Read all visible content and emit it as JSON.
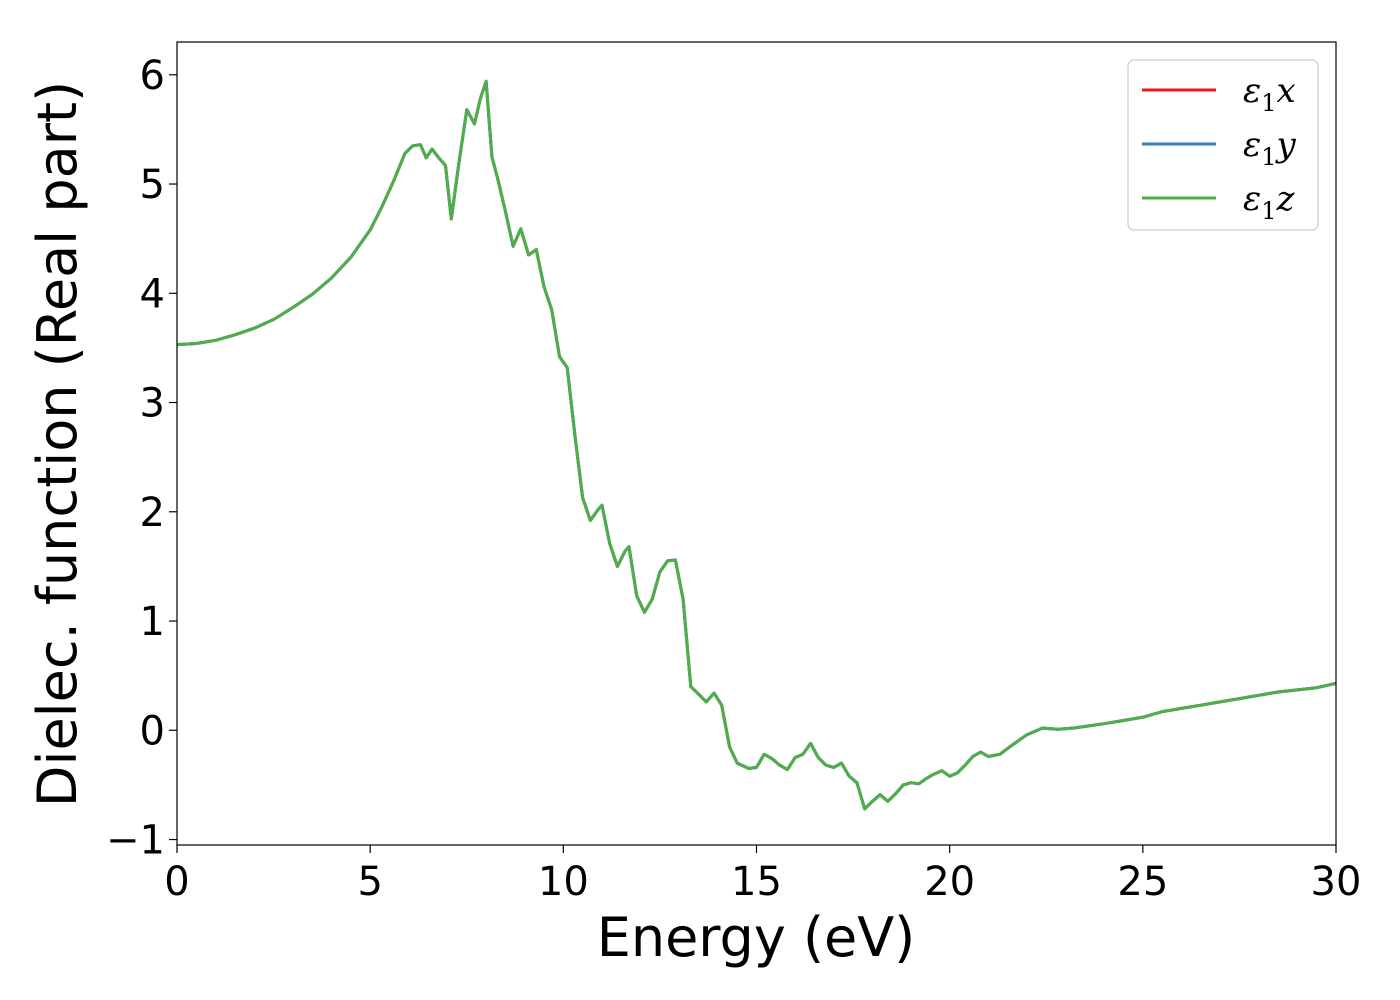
{
  "chart_data": {
    "type": "line",
    "title": "",
    "xlabel": "Energy (eV)",
    "ylabel": "Dielec. function (Real part)",
    "xlim": [
      0,
      30
    ],
    "ylim": [
      -1.05,
      6.3
    ],
    "xticks": [
      0,
      5,
      10,
      15,
      20,
      25,
      30
    ],
    "yticks": [
      -1,
      0,
      1,
      2,
      3,
      4,
      5,
      6
    ],
    "xtick_labels": [
      "0",
      "5",
      "10",
      "15",
      "20",
      "25",
      "30"
    ],
    "ytick_labels": [
      "−1",
      "0",
      "1",
      "2",
      "3",
      "4",
      "5",
      "6"
    ],
    "grid": false,
    "legend_position": "top-right",
    "x": [
      0,
      0.5,
      1,
      1.5,
      2,
      2.5,
      3,
      3.5,
      4,
      4.5,
      5,
      5.3,
      5.6,
      5.9,
      6.1,
      6.3,
      6.45,
      6.6,
      6.8,
      6.95,
      7.1,
      7.3,
      7.5,
      7.7,
      7.85,
      8.0,
      8.15,
      8.3,
      8.5,
      8.7,
      8.9,
      9.1,
      9.3,
      9.5,
      9.7,
      9.9,
      10.1,
      10.3,
      10.5,
      10.7,
      10.9,
      11.0,
      11.2,
      11.4,
      11.6,
      11.7,
      11.9,
      12.1,
      12.3,
      12.5,
      12.7,
      12.9,
      13.1,
      13.3,
      13.5,
      13.7,
      13.9,
      14.1,
      14.3,
      14.5,
      14.8,
      15.0,
      15.2,
      15.4,
      15.6,
      15.8,
      16.0,
      16.2,
      16.4,
      16.6,
      16.8,
      17.0,
      17.2,
      17.4,
      17.6,
      17.8,
      18.0,
      18.2,
      18.4,
      18.6,
      18.8,
      19.0,
      19.2,
      19.4,
      19.6,
      19.8,
      20.0,
      20.2,
      20.4,
      20.6,
      20.8,
      21.0,
      21.3,
      21.6,
      22.0,
      22.4,
      22.8,
      23.2,
      23.6,
      24.0,
      24.5,
      25.0,
      25.5,
      26.0,
      26.5,
      27.0,
      27.5,
      28.0,
      28.5,
      29.0,
      29.5,
      30.0
    ],
    "series": [
      {
        "name": "ε1x",
        "color": "#e41a1c",
        "values": [
          3.53,
          3.54,
          3.57,
          3.62,
          3.68,
          3.76,
          3.87,
          3.99,
          4.14,
          4.33,
          4.58,
          4.79,
          5.02,
          5.28,
          5.35,
          5.36,
          5.24,
          5.32,
          5.23,
          5.17,
          4.68,
          5.2,
          5.68,
          5.55,
          5.78,
          5.94,
          5.25,
          5.05,
          4.75,
          4.43,
          4.59,
          4.35,
          4.4,
          4.06,
          3.85,
          3.42,
          3.32,
          2.7,
          2.13,
          1.92,
          2.02,
          2.06,
          1.71,
          1.5,
          1.64,
          1.68,
          1.23,
          1.08,
          1.2,
          1.45,
          1.55,
          1.56,
          1.2,
          0.4,
          0.33,
          0.26,
          0.34,
          0.23,
          -0.15,
          -0.3,
          -0.35,
          -0.34,
          -0.22,
          -0.26,
          -0.32,
          -0.36,
          -0.25,
          -0.22,
          -0.12,
          -0.25,
          -0.32,
          -0.34,
          -0.3,
          -0.42,
          -0.48,
          -0.72,
          -0.65,
          -0.59,
          -0.65,
          -0.58,
          -0.5,
          -0.48,
          -0.49,
          -0.44,
          -0.4,
          -0.37,
          -0.42,
          -0.39,
          -0.32,
          -0.24,
          -0.2,
          -0.24,
          -0.22,
          -0.14,
          -0.04,
          0.02,
          0.01,
          0.02,
          0.04,
          0.06,
          0.09,
          0.12,
          0.17,
          0.2,
          0.23,
          0.26,
          0.29,
          0.32,
          0.35,
          0.37,
          0.39,
          0.43
        ]
      },
      {
        "name": "ε1y",
        "color": "#377eb8",
        "values": [
          3.53,
          3.54,
          3.57,
          3.62,
          3.68,
          3.76,
          3.87,
          3.99,
          4.14,
          4.33,
          4.58,
          4.79,
          5.02,
          5.28,
          5.35,
          5.36,
          5.24,
          5.32,
          5.23,
          5.17,
          4.68,
          5.2,
          5.68,
          5.55,
          5.78,
          5.94,
          5.25,
          5.05,
          4.75,
          4.43,
          4.59,
          4.35,
          4.4,
          4.06,
          3.85,
          3.42,
          3.32,
          2.7,
          2.13,
          1.92,
          2.02,
          2.06,
          1.71,
          1.5,
          1.64,
          1.68,
          1.23,
          1.08,
          1.2,
          1.45,
          1.55,
          1.56,
          1.2,
          0.4,
          0.33,
          0.26,
          0.34,
          0.23,
          -0.15,
          -0.3,
          -0.35,
          -0.34,
          -0.22,
          -0.26,
          -0.32,
          -0.36,
          -0.25,
          -0.22,
          -0.12,
          -0.25,
          -0.32,
          -0.34,
          -0.3,
          -0.42,
          -0.48,
          -0.72,
          -0.65,
          -0.59,
          -0.65,
          -0.58,
          -0.5,
          -0.48,
          -0.49,
          -0.44,
          -0.4,
          -0.37,
          -0.42,
          -0.39,
          -0.32,
          -0.24,
          -0.2,
          -0.24,
          -0.22,
          -0.14,
          -0.04,
          0.02,
          0.01,
          0.02,
          0.04,
          0.06,
          0.09,
          0.12,
          0.17,
          0.2,
          0.23,
          0.26,
          0.29,
          0.32,
          0.35,
          0.37,
          0.39,
          0.43
        ]
      },
      {
        "name": "ε1z",
        "color": "#4daf4a",
        "values": [
          3.53,
          3.54,
          3.57,
          3.62,
          3.68,
          3.76,
          3.87,
          3.99,
          4.14,
          4.33,
          4.58,
          4.79,
          5.02,
          5.28,
          5.35,
          5.36,
          5.24,
          5.32,
          5.23,
          5.17,
          4.68,
          5.2,
          5.68,
          5.55,
          5.78,
          5.94,
          5.25,
          5.05,
          4.75,
          4.43,
          4.59,
          4.35,
          4.4,
          4.06,
          3.85,
          3.42,
          3.32,
          2.7,
          2.13,
          1.92,
          2.02,
          2.06,
          1.71,
          1.5,
          1.64,
          1.68,
          1.23,
          1.08,
          1.2,
          1.45,
          1.55,
          1.56,
          1.2,
          0.4,
          0.33,
          0.26,
          0.34,
          0.23,
          -0.15,
          -0.3,
          -0.35,
          -0.34,
          -0.22,
          -0.26,
          -0.32,
          -0.36,
          -0.25,
          -0.22,
          -0.12,
          -0.25,
          -0.32,
          -0.34,
          -0.3,
          -0.42,
          -0.48,
          -0.72,
          -0.65,
          -0.59,
          -0.65,
          -0.58,
          -0.5,
          -0.48,
          -0.49,
          -0.44,
          -0.4,
          -0.37,
          -0.42,
          -0.39,
          -0.32,
          -0.24,
          -0.2,
          -0.24,
          -0.22,
          -0.14,
          -0.04,
          0.02,
          0.01,
          0.02,
          0.04,
          0.06,
          0.09,
          0.12,
          0.17,
          0.2,
          0.23,
          0.26,
          0.29,
          0.32,
          0.35,
          0.37,
          0.39,
          0.43
        ]
      }
    ],
    "legend": [
      {
        "base": "ε",
        "sub": "1",
        "comp": "x",
        "color": "#e41a1c"
      },
      {
        "base": "ε",
        "sub": "1",
        "comp": "y",
        "color": "#377eb8"
      },
      {
        "base": "ε",
        "sub": "1",
        "comp": "z",
        "color": "#4daf4a"
      }
    ]
  }
}
